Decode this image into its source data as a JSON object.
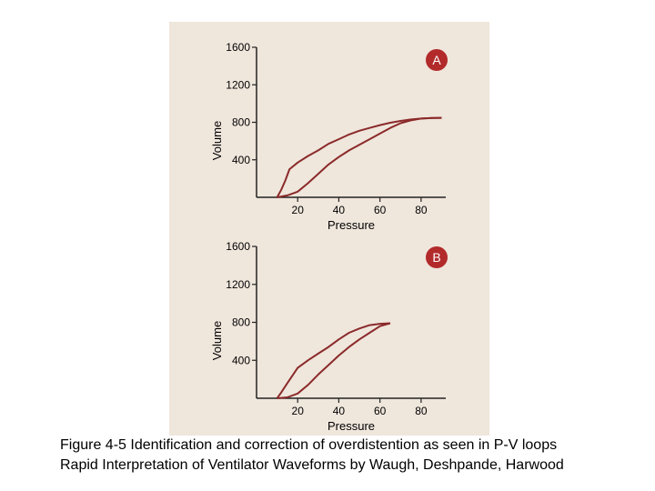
{
  "caption": {
    "line1": "Figure 4-5 Identification and correction of overdistention as seen in P-V loops",
    "line2": "Rapid Interpretation of Ventilator Waveforms by Waugh, Deshpande, Harwood"
  },
  "colors": {
    "curve": "#8b2a2a",
    "badge": "#b22a2a",
    "axis": "#222222",
    "scan": "#efe6dc"
  },
  "chart_data": [
    {
      "type": "line",
      "panel_label": "A",
      "xlabel": "Pressure",
      "ylabel": "Volume",
      "xlim": [
        0,
        92
      ],
      "ylim": [
        0,
        1600
      ],
      "xticks": [
        20,
        40,
        60,
        80
      ],
      "yticks": [
        400,
        800,
        1200,
        1600
      ],
      "series": [
        {
          "segment": "inspiration",
          "x": [
            10,
            15,
            20,
            25,
            30,
            35,
            40,
            45,
            50,
            55,
            60,
            65,
            70,
            75,
            80,
            85,
            90
          ],
          "y": [
            0,
            20,
            60,
            150,
            250,
            350,
            430,
            500,
            560,
            620,
            680,
            740,
            790,
            820,
            840,
            845,
            848
          ]
        },
        {
          "segment": "expiration",
          "x": [
            90,
            85,
            80,
            75,
            70,
            65,
            60,
            55,
            50,
            45,
            40,
            35,
            30,
            25,
            20,
            16,
            14,
            12,
            10
          ],
          "y": [
            848,
            846,
            840,
            830,
            815,
            795,
            770,
            740,
            710,
            670,
            620,
            570,
            500,
            440,
            370,
            300,
            180,
            80,
            0
          ]
        }
      ]
    },
    {
      "type": "line",
      "panel_label": "B",
      "xlabel": "Pressure",
      "ylabel": "Volume",
      "xlim": [
        0,
        92
      ],
      "ylim": [
        0,
        1600
      ],
      "xticks": [
        20,
        40,
        60,
        80
      ],
      "yticks": [
        400,
        800,
        1200,
        1600
      ],
      "series": [
        {
          "segment": "inspiration",
          "x": [
            10,
            15,
            20,
            25,
            30,
            35,
            40,
            45,
            50,
            55,
            60,
            65
          ],
          "y": [
            0,
            10,
            50,
            140,
            250,
            350,
            450,
            540,
            620,
            690,
            760,
            790
          ]
        },
        {
          "segment": "expiration",
          "x": [
            65,
            60,
            55,
            50,
            45,
            40,
            35,
            30,
            25,
            20,
            15,
            12,
            10
          ],
          "y": [
            790,
            785,
            770,
            735,
            690,
            620,
            540,
            470,
            400,
            320,
            160,
            60,
            0
          ]
        }
      ]
    }
  ]
}
